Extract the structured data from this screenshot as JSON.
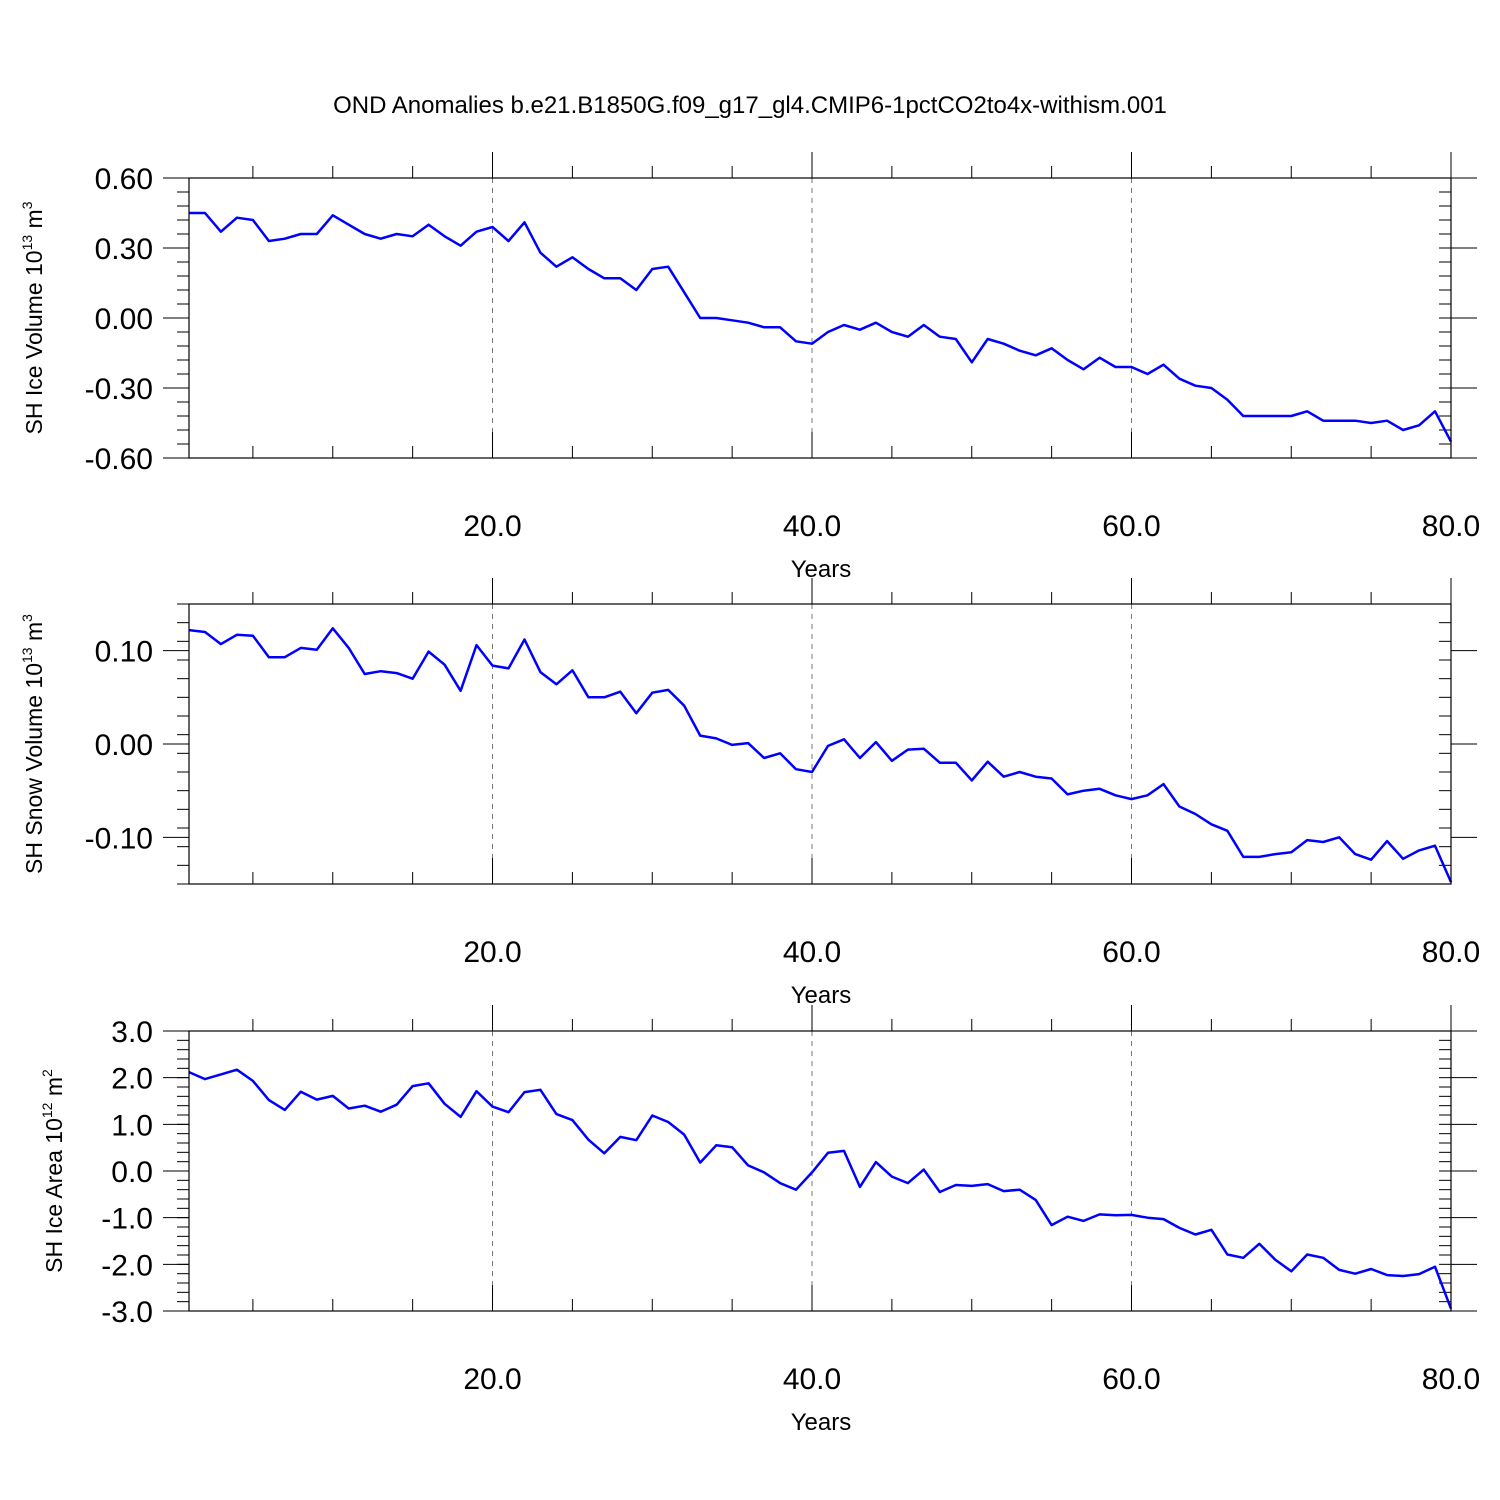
{
  "figure_title": "OND Anomalies b.e21.B1850G.f09_g17_gl4.CMIP6-1pctCO2to4x-withism.001",
  "colors": {
    "line": "#0000ff",
    "axis": "#000000",
    "grid": "#777777"
  },
  "chart_data": [
    {
      "type": "line",
      "title": "",
      "xlabel": "Years",
      "ylabel": {
        "text": "SH Ice Volume 10",
        "sup": "13",
        "unit": " m",
        "unit_sup": "3"
      },
      "xlim": [
        1,
        80
      ],
      "ylim": [
        -0.6,
        0.6
      ],
      "xticks": [
        20,
        40,
        60,
        80
      ],
      "xtick_labels": [
        "20.0",
        "40.0",
        "60.0",
        "80.0"
      ],
      "yticks": [
        0.6,
        0.3,
        0.0,
        -0.3,
        -0.6
      ],
      "ytick_labels": [
        "0.60",
        "0.30",
        "0.00",
        "-0.30",
        "-0.60"
      ],
      "yminor_step": 0.06,
      "grid": "vertical dashed at major x ticks",
      "series": [
        {
          "name": "SH Ice Volume",
          "x": [
            1,
            2,
            3,
            4,
            5,
            6,
            7,
            8,
            9,
            10,
            11,
            12,
            13,
            14,
            15,
            16,
            17,
            18,
            19,
            20,
            21,
            22,
            23,
            24,
            25,
            26,
            27,
            28,
            29,
            30,
            31,
            32,
            33,
            34,
            35,
            36,
            37,
            38,
            39,
            40,
            41,
            42,
            43,
            44,
            45,
            46,
            47,
            48,
            49,
            50,
            51,
            52,
            53,
            54,
            55,
            56,
            57,
            58,
            59,
            60,
            61,
            62,
            63,
            64,
            65,
            66,
            67,
            68,
            69,
            70,
            71,
            72,
            73,
            74,
            75,
            76,
            77,
            78,
            79,
            80
          ],
          "values": [
            0.45,
            0.45,
            0.37,
            0.43,
            0.42,
            0.33,
            0.34,
            0.36,
            0.36,
            0.44,
            0.4,
            0.36,
            0.34,
            0.36,
            0.35,
            0.4,
            0.35,
            0.31,
            0.37,
            0.39,
            0.33,
            0.41,
            0.28,
            0.22,
            0.26,
            0.21,
            0.17,
            0.17,
            0.12,
            0.21,
            0.22,
            0.11,
            0.0,
            0.0,
            -0.01,
            -0.02,
            -0.04,
            -0.04,
            -0.1,
            -0.11,
            -0.06,
            -0.03,
            -0.05,
            -0.02,
            -0.06,
            -0.08,
            -0.03,
            -0.08,
            -0.09,
            -0.19,
            -0.09,
            -0.11,
            -0.14,
            -0.16,
            -0.13,
            -0.18,
            -0.22,
            -0.17,
            -0.21,
            -0.21,
            -0.24,
            -0.2,
            -0.26,
            -0.29,
            -0.3,
            -0.35,
            -0.42,
            -0.42,
            -0.42,
            -0.42,
            -0.4,
            -0.44,
            -0.44,
            -0.44,
            -0.45,
            -0.44,
            -0.48,
            -0.46,
            -0.4,
            -0.53
          ]
        }
      ]
    },
    {
      "type": "line",
      "title": "",
      "xlabel": "Years",
      "ylabel": {
        "text": "SH Snow Volume 10",
        "sup": "13",
        "unit": " m",
        "unit_sup": "3"
      },
      "xlim": [
        1,
        80
      ],
      "ylim": [
        -0.15,
        0.15
      ],
      "xticks": [
        20,
        40,
        60,
        80
      ],
      "xtick_labels": [
        "20.0",
        "40.0",
        "60.0",
        "80.0"
      ],
      "yticks": [
        0.1,
        0.0,
        -0.1
      ],
      "ytick_labels": [
        "0.10",
        "0.00",
        "-0.10"
      ],
      "yminor_step": 0.02,
      "grid": "vertical dashed at major x ticks",
      "series": [
        {
          "name": "SH Snow Volume",
          "x": [
            1,
            2,
            3,
            4,
            5,
            6,
            7,
            8,
            9,
            10,
            11,
            12,
            13,
            14,
            15,
            16,
            17,
            18,
            19,
            20,
            21,
            22,
            23,
            24,
            25,
            26,
            27,
            28,
            29,
            30,
            31,
            32,
            33,
            34,
            35,
            36,
            37,
            38,
            39,
            40,
            41,
            42,
            43,
            44,
            45,
            46,
            47,
            48,
            49,
            50,
            51,
            52,
            53,
            54,
            55,
            56,
            57,
            58,
            59,
            60,
            61,
            62,
            63,
            64,
            65,
            66,
            67,
            68,
            69,
            70,
            71,
            72,
            73,
            74,
            75,
            76,
            77,
            78,
            79,
            80
          ],
          "values": [
            0.122,
            0.12,
            0.107,
            0.117,
            0.116,
            0.093,
            0.093,
            0.103,
            0.101,
            0.124,
            0.103,
            0.075,
            0.078,
            0.076,
            0.07,
            0.099,
            0.085,
            0.057,
            0.106,
            0.084,
            0.081,
            0.112,
            0.077,
            0.064,
            0.079,
            0.05,
            0.05,
            0.056,
            0.033,
            0.055,
            0.058,
            0.041,
            0.009,
            0.006,
            -0.001,
            0.001,
            -0.015,
            -0.01,
            -0.027,
            -0.03,
            -0.002,
            0.005,
            -0.015,
            0.002,
            -0.018,
            -0.006,
            -0.005,
            -0.02,
            -0.02,
            -0.039,
            -0.019,
            -0.035,
            -0.03,
            -0.035,
            -0.037,
            -0.054,
            -0.05,
            -0.048,
            -0.055,
            -0.059,
            -0.055,
            -0.043,
            -0.067,
            -0.075,
            -0.086,
            -0.093,
            -0.121,
            -0.121,
            -0.118,
            -0.116,
            -0.103,
            -0.105,
            -0.1,
            -0.118,
            -0.124,
            -0.104,
            -0.123,
            -0.114,
            -0.109,
            -0.148
          ]
        }
      ]
    },
    {
      "type": "line",
      "title": "",
      "xlabel": "Years",
      "ylabel": {
        "text": "SH Ice Area 10",
        "sup": "12",
        "unit": " m",
        "unit_sup": "2"
      },
      "xlim": [
        1,
        80
      ],
      "ylim": [
        -3.0,
        3.0
      ],
      "xticks": [
        20,
        40,
        60,
        80
      ],
      "xtick_labels": [
        "20.0",
        "40.0",
        "60.0",
        "80.0"
      ],
      "yticks": [
        3.0,
        2.0,
        1.0,
        0.0,
        -1.0,
        -2.0,
        -3.0
      ],
      "ytick_labels": [
        "3.0",
        "2.0",
        "1.0",
        "0.0",
        "-1.0",
        "-2.0",
        "-3.0"
      ],
      "yminor_step": 0.2,
      "grid": "vertical dashed at major x ticks",
      "series": [
        {
          "name": "SH Ice Area",
          "x": [
            1,
            2,
            3,
            4,
            5,
            6,
            7,
            8,
            9,
            10,
            11,
            12,
            13,
            14,
            15,
            16,
            17,
            18,
            19,
            20,
            21,
            22,
            23,
            24,
            25,
            26,
            27,
            28,
            29,
            30,
            31,
            32,
            33,
            34,
            35,
            36,
            37,
            38,
            39,
            40,
            41,
            42,
            43,
            44,
            45,
            46,
            47,
            48,
            49,
            50,
            51,
            52,
            53,
            54,
            55,
            56,
            57,
            58,
            59,
            60,
            61,
            62,
            63,
            64,
            65,
            66,
            67,
            68,
            69,
            70,
            71,
            72,
            73,
            74,
            75,
            76,
            77,
            78,
            79,
            80
          ],
          "values": [
            2.12,
            1.97,
            2.07,
            2.17,
            1.93,
            1.52,
            1.31,
            1.7,
            1.53,
            1.61,
            1.34,
            1.4,
            1.27,
            1.42,
            1.82,
            1.88,
            1.44,
            1.16,
            1.71,
            1.38,
            1.26,
            1.69,
            1.74,
            1.22,
            1.09,
            0.67,
            0.38,
            0.73,
            0.66,
            1.19,
            1.05,
            0.78,
            0.18,
            0.55,
            0.51,
            0.12,
            -0.03,
            -0.26,
            -0.4,
            -0.03,
            0.39,
            0.43,
            -0.34,
            0.19,
            -0.12,
            -0.26,
            0.03,
            -0.45,
            -0.3,
            -0.32,
            -0.28,
            -0.43,
            -0.4,
            -0.62,
            -1.16,
            -0.98,
            -1.07,
            -0.93,
            -0.95,
            -0.94,
            -1.0,
            -1.03,
            -1.22,
            -1.36,
            -1.26,
            -1.79,
            -1.86,
            -1.56,
            -1.9,
            -2.15,
            -1.79,
            -1.86,
            -2.12,
            -2.2,
            -2.1,
            -2.23,
            -2.25,
            -2.21,
            -2.05,
            -2.95
          ]
        }
      ]
    }
  ]
}
